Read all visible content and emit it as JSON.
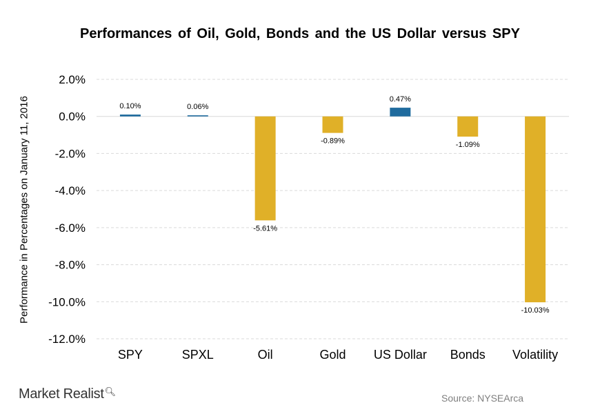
{
  "chart_data": {
    "type": "bar",
    "title": "Performances  of Oil, Gold, Bonds and the US Dollar  versus SPY",
    "ylabel": "Performance in Percentages on January 11, 2016",
    "xlabel": "",
    "categories": [
      "SPY",
      "SPXL",
      "Oil",
      "Gold",
      "US Dollar",
      "Bonds",
      "Volatility"
    ],
    "values": [
      0.1,
      0.06,
      -5.61,
      -0.89,
      0.47,
      -1.09,
      -10.03
    ],
    "value_labels": [
      "0.10%",
      "0.06%",
      "-5.61%",
      "-0.89%",
      "0.47%",
      "-1.09%",
      "-10.03%"
    ],
    "bar_colors": [
      "#1f6b9e",
      "#1f6b9e",
      "#e0b028",
      "#e0b028",
      "#1f6b9e",
      "#e0b028",
      "#e0b028"
    ],
    "ylim": [
      -12,
      2
    ],
    "yticks": [
      "2.0%",
      "0.0%",
      "-2.0%",
      "-4.0%",
      "-6.0%",
      "-8.0%",
      "-10.0%",
      "-12.0%"
    ],
    "ytick_values": [
      2,
      0,
      -2,
      -4,
      -6,
      -8,
      -10,
      -12
    ],
    "grid": true,
    "grid_color": "#d9d9d9",
    "legend": "none"
  },
  "branding": {
    "logo": "Market Realist",
    "source": "Source: NYSEArca"
  }
}
